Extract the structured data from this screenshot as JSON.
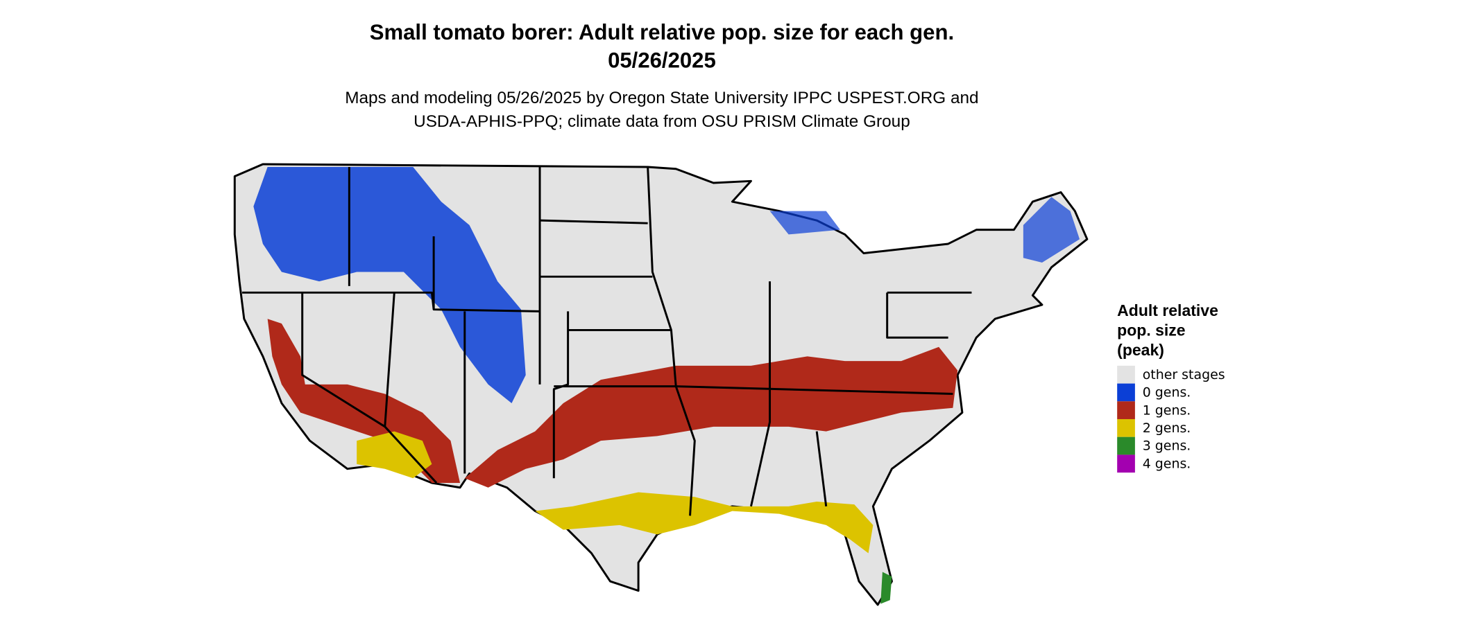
{
  "title": [
    "Small tomato borer: Adult relative pop. size for each gen.",
    "05/26/2025"
  ],
  "subtitle": [
    "Maps and modeling 05/26/2025 by Oregon State University IPPC USPEST.ORG and",
    "USDA-APHIS-PPQ; climate data from OSU PRISM Climate Group"
  ],
  "legend": {
    "title": [
      "Adult relative",
      "pop. size",
      "(peak)"
    ],
    "items": [
      {
        "label": "other stages",
        "color": "#e3e3e3"
      },
      {
        "label": "0 gens.",
        "color": "#0b3fd6"
      },
      {
        "label": "1 gens.",
        "color": "#b0291a"
      },
      {
        "label": "2 gens.",
        "color": "#dcc300"
      },
      {
        "label": "3 gens.",
        "color": "#2a8a2a"
      },
      {
        "label": "4 gens.",
        "color": "#a300b0"
      }
    ]
  }
}
